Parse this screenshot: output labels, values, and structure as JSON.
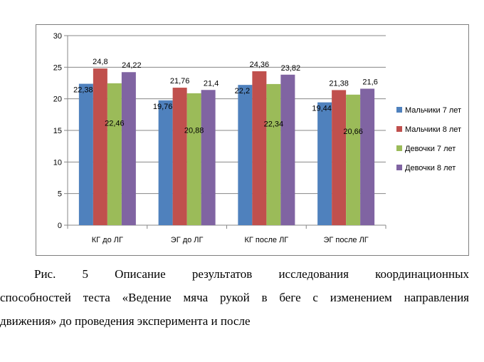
{
  "chart_data": {
    "type": "bar",
    "categories": [
      "КГ до ЛГ",
      "ЭГ до ЛГ",
      "КГ после ЛГ",
      "ЭГ после ЛГ"
    ],
    "series": [
      {
        "name": "Мальчики 7 лет",
        "color": "#4f81bd",
        "values": [
          22.38,
          19.76,
          22.2,
          19.44
        ],
        "labels": [
          "22,38",
          "19,76",
          "22,2",
          "19,44"
        ]
      },
      {
        "name": "Мальчики 8 лет",
        "color": "#c0504d",
        "values": [
          24.8,
          21.76,
          24.36,
          21.38
        ],
        "labels": [
          "24,8",
          "21,76",
          "24,36",
          "21,38"
        ]
      },
      {
        "name": "Девочки 7 лет",
        "color": "#9bbb59",
        "values": [
          22.46,
          20.88,
          22.34,
          20.66
        ],
        "labels": [
          "22,46",
          "20,88",
          "22,34",
          "20,66"
        ]
      },
      {
        "name": "Девочки 8 лет",
        "color": "#8064a2",
        "values": [
          24.22,
          21.4,
          23.82,
          21.6
        ],
        "labels": [
          "24,22",
          "21,4",
          "23,82",
          "21,6"
        ]
      }
    ],
    "ylim": [
      0,
      30
    ],
    "yticks": [
      0,
      5,
      10,
      15,
      20,
      25,
      30
    ],
    "grid": true,
    "legend": "right"
  },
  "caption": {
    "line1": "Рис.   5   Описание   результатов   исследования   координационных",
    "line2": "способностей теста «Ведение мяча рукой в беге с изменением направления",
    "line3": "движения» до проведения эксперимента и после"
  }
}
